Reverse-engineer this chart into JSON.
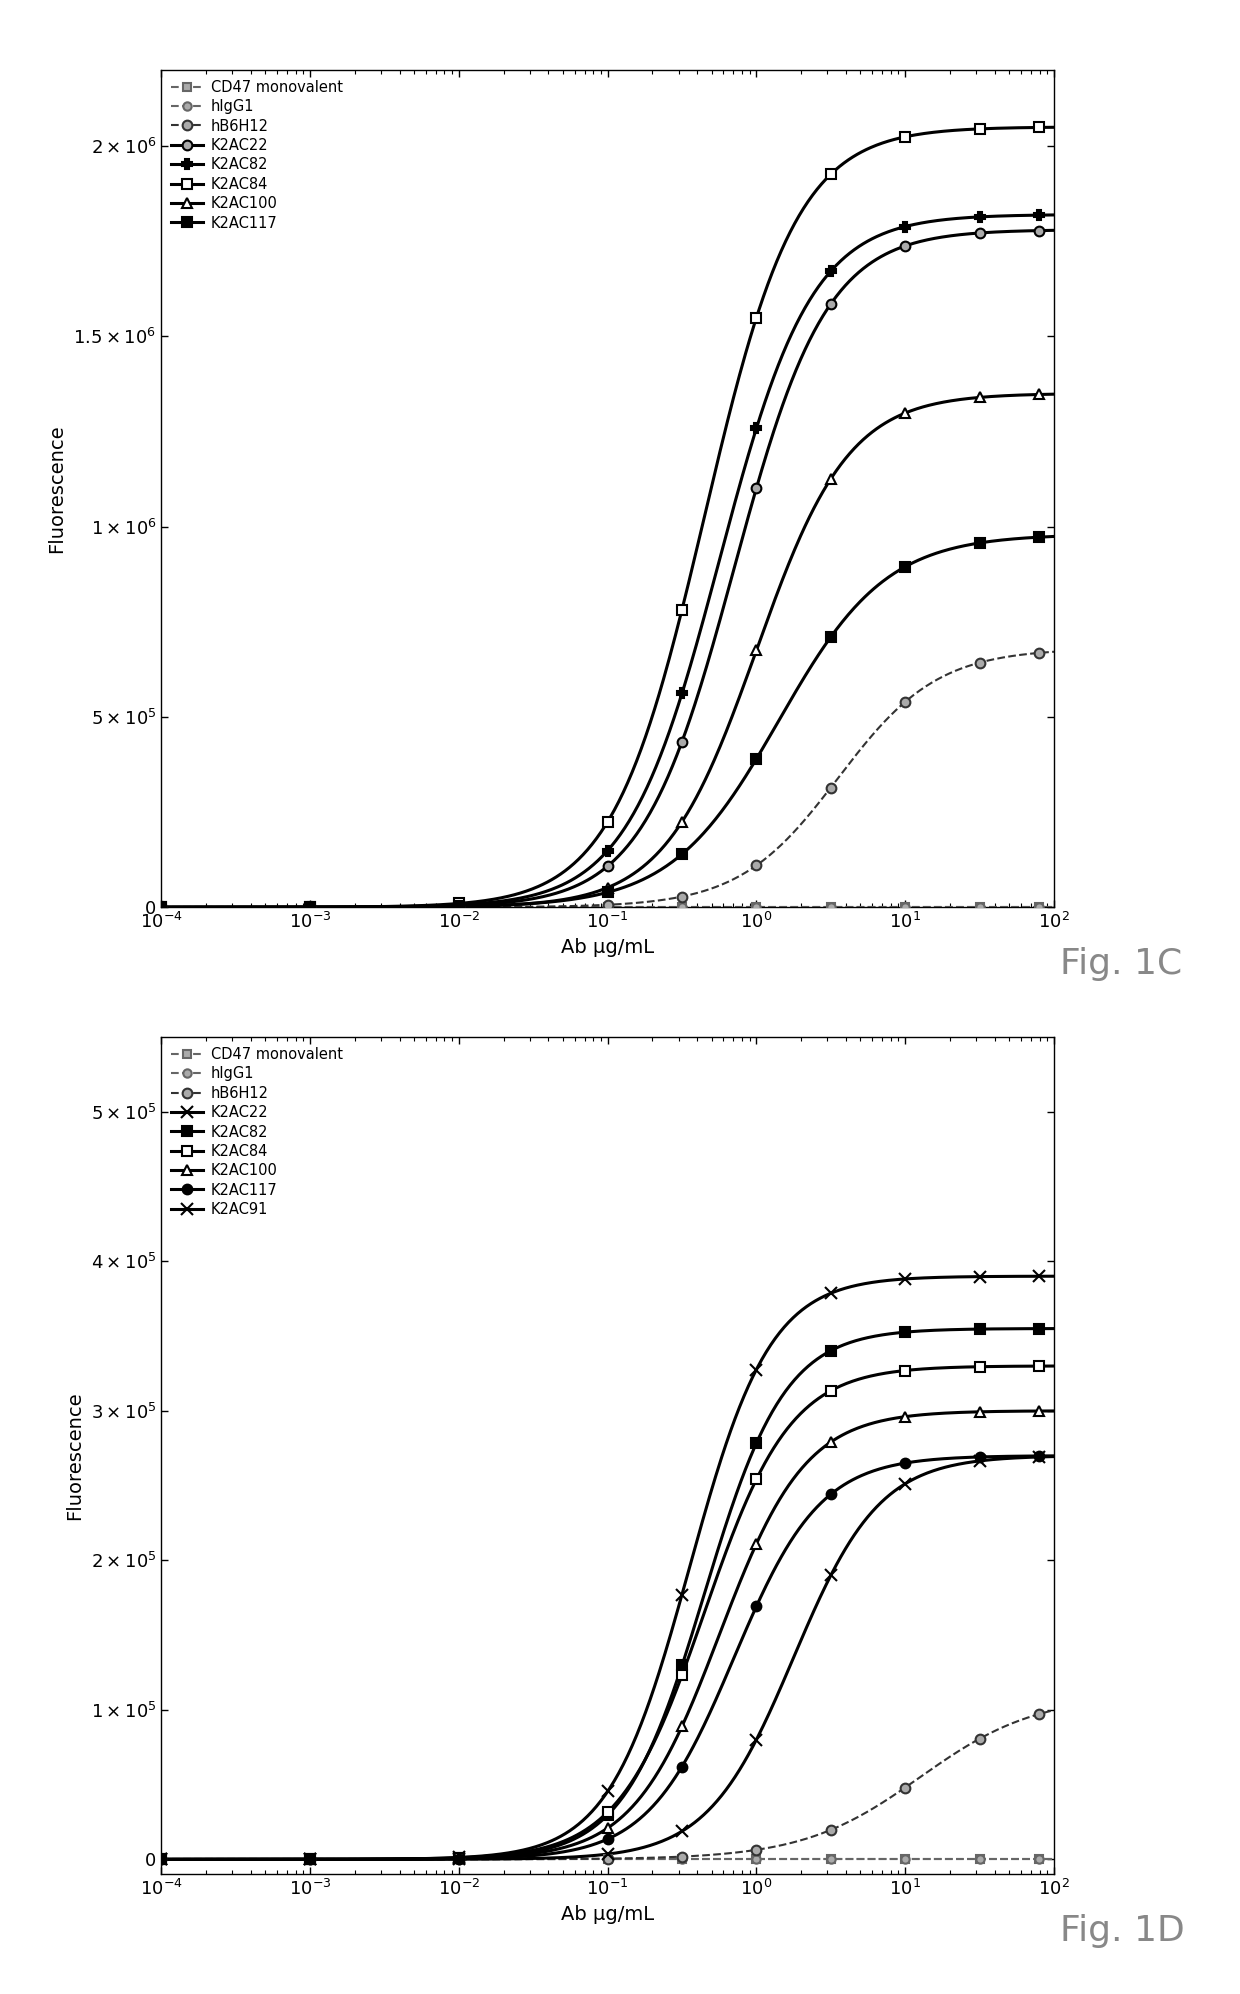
{
  "fig1c": {
    "title": "Fig. 1C",
    "xlabel": "Ab μg/mL",
    "ylabel": "Fluorescence",
    "xlim_log": [
      -4,
      2
    ],
    "ylim": [
      0,
      2200000.0
    ],
    "yticks": [
      0,
      500000.0,
      1000000.0,
      1500000.0,
      2000000.0
    ],
    "series": [
      {
        "label": "CD47 monovalent",
        "style": "dashed",
        "marker": "s",
        "color": "#666666",
        "fc": "#aaaaaa",
        "logEC50": 99,
        "bottom": 0,
        "top": 0,
        "hill": 1,
        "ms": 6
      },
      {
        "label": "hIgG1",
        "style": "dashed",
        "marker": "o",
        "color": "#666666",
        "fc": "#aaaaaa",
        "logEC50": 99,
        "bottom": 0,
        "top": 0,
        "hill": 1,
        "ms": 6
      },
      {
        "label": "hB6H12",
        "style": "dashed",
        "marker": "o",
        "color": "#333333",
        "fc": "#aaaaaa",
        "logEC50": 0.55,
        "bottom": 0,
        "top": 680000.0,
        "hill": 1.3,
        "ms": 7
      },
      {
        "label": "K2AC22",
        "style": "solid",
        "marker": "o",
        "color": "#000000",
        "fc": "#aaaaaa",
        "logEC50": -0.15,
        "bottom": 0,
        "top": 1780000.0,
        "hill": 1.4,
        "ms": 7
      },
      {
        "label": "K2AC82",
        "style": "solid",
        "marker": "P",
        "color": "#000000",
        "fc": "#000000",
        "logEC50": -0.25,
        "bottom": 0,
        "top": 1820000.0,
        "hill": 1.4,
        "ms": 7
      },
      {
        "label": "K2AC84",
        "style": "solid",
        "marker": "s",
        "color": "#000000",
        "fc": "white",
        "logEC50": -0.35,
        "bottom": 0,
        "top": 2050000.0,
        "hill": 1.4,
        "ms": 7
      },
      {
        "label": "K2AC100",
        "style": "solid",
        "marker": "^",
        "color": "#000000",
        "fc": "white",
        "logEC50": 0.0,
        "bottom": 0,
        "top": 1350000.0,
        "hill": 1.4,
        "ms": 7
      },
      {
        "label": "K2AC117",
        "style": "solid",
        "marker": "s",
        "color": "#000000",
        "fc": "#000000",
        "logEC50": 0.15,
        "bottom": 0,
        "top": 980000.0,
        "hill": 1.2,
        "ms": 7
      }
    ]
  },
  "fig1d": {
    "title": "Fig. 1D",
    "xlabel": "Ab μg/mL",
    "ylabel": "Fluorescence",
    "xlim_log": [
      -4,
      2
    ],
    "ylim": [
      -10000.0,
      550000.0
    ],
    "yticks": [
      0,
      100000.0,
      200000.0,
      300000.0,
      400000.0,
      500000.0
    ],
    "series": [
      {
        "label": "CD47 monovalent",
        "style": "dashed",
        "marker": "s",
        "color": "#666666",
        "fc": "#aaaaaa",
        "logEC50": 99,
        "bottom": 0,
        "top": 0,
        "hill": 1,
        "ms": 6
      },
      {
        "label": "hIgG1",
        "style": "dashed",
        "marker": "o",
        "color": "#666666",
        "fc": "#aaaaaa",
        "logEC50": 99,
        "bottom": 0,
        "top": 0,
        "hill": 1,
        "ms": 6
      },
      {
        "label": "hB6H12",
        "style": "dashed",
        "marker": "o",
        "color": "#333333",
        "fc": "#aaaaaa",
        "logEC50": 1.1,
        "bottom": 0,
        "top": 110000.0,
        "hill": 1.1,
        "ms": 7
      },
      {
        "label": "K2AC22",
        "style": "solid",
        "marker": "x",
        "color": "#000000",
        "fc": "#000000",
        "logEC50": -0.45,
        "bottom": 0,
        "top": 390000.0,
        "hill": 1.6,
        "ms": 8
      },
      {
        "label": "K2AC82",
        "style": "solid",
        "marker": "s",
        "color": "#000000",
        "fc": "#000000",
        "logEC50": -0.35,
        "bottom": 0,
        "top": 355000.0,
        "hill": 1.6,
        "ms": 7
      },
      {
        "label": "K2AC84",
        "style": "solid",
        "marker": "s",
        "color": "#000000",
        "fc": "white",
        "logEC50": -0.35,
        "bottom": 0,
        "top": 330000.0,
        "hill": 1.5,
        "ms": 7
      },
      {
        "label": "K2AC100",
        "style": "solid",
        "marker": "^",
        "color": "#000000",
        "fc": "white",
        "logEC50": -0.25,
        "bottom": 0,
        "top": 300000.0,
        "hill": 1.5,
        "ms": 7
      },
      {
        "label": "K2AC117",
        "style": "solid",
        "marker": "o",
        "color": "#000000",
        "fc": "#000000",
        "logEC50": -0.15,
        "bottom": 0,
        "top": 270000.0,
        "hill": 1.5,
        "ms": 7
      },
      {
        "label": "K2AC91",
        "style": "solid",
        "marker": "x",
        "color": "#000000",
        "fc": "#000000",
        "logEC50": 0.25,
        "bottom": 0,
        "top": 270000.0,
        "hill": 1.5,
        "ms": 8
      }
    ]
  }
}
